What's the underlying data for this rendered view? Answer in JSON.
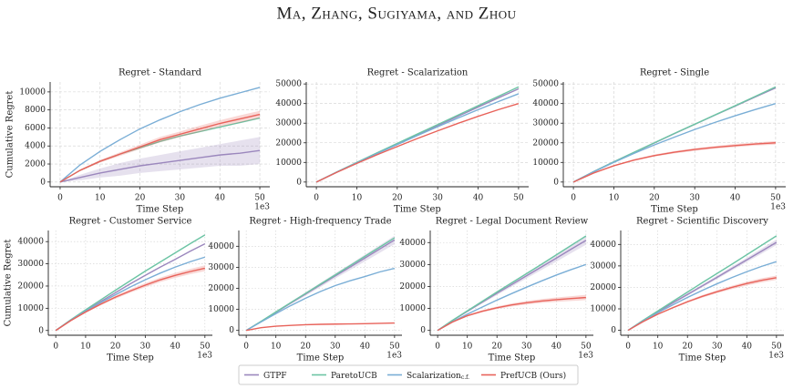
{
  "header": {
    "title": "Ma, Zhang, Sugiyama, and Zhou"
  },
  "chart_data": [
    {
      "type": "line",
      "title": "Regret - Standard",
      "xlabel": "Time Step",
      "ylabel": "Cumulative Regret",
      "x_offset_label": "1e3",
      "grid": "dashed",
      "x": [
        0,
        5,
        10,
        15,
        20,
        25,
        30,
        35,
        40,
        45,
        50
      ],
      "xlim": [
        -2.5,
        52.5
      ],
      "xticks": [
        0,
        10,
        20,
        30,
        40,
        50
      ],
      "ylim": [
        -525,
        11100
      ],
      "yticks": [
        0,
        2000,
        4000,
        6000,
        8000,
        10000
      ],
      "series": [
        {
          "name": "GTPF",
          "color": "#9b87bd",
          "values": [
            0,
            500,
            1000,
            1400,
            1800,
            2100,
            2400,
            2700,
            3000,
            3200,
            3500
          ],
          "error": [
            0,
            300,
            500,
            700,
            800,
            900,
            1000,
            1100,
            1200,
            1400,
            1500
          ]
        },
        {
          "name": "ParetoUCB",
          "color": "#6cc4a4",
          "values": [
            0,
            1300,
            2300,
            3100,
            3800,
            4500,
            5100,
            5600,
            6100,
            6600,
            7100
          ]
        },
        {
          "name": "Scalarization",
          "subscript": "c.f.",
          "color": "#7aaed6",
          "values": [
            0,
            1900,
            3400,
            4700,
            5900,
            6900,
            7800,
            8600,
            9300,
            9900,
            10500
          ]
        },
        {
          "name": "PrefUCB (Ours)",
          "color": "#e8625a",
          "values": [
            0,
            1300,
            2300,
            3100,
            3900,
            4700,
            5300,
            5900,
            6500,
            7000,
            7500
          ],
          "error": [
            0,
            100,
            150,
            200,
            250,
            300,
            300,
            350,
            350,
            400,
            400
          ]
        }
      ]
    },
    {
      "type": "line",
      "title": "Regret - Scalarization",
      "xlabel": "Time Step",
      "grid": "dashed",
      "x": [
        0,
        5,
        10,
        15,
        20,
        25,
        30,
        35,
        40,
        45,
        50
      ],
      "xlim": [
        -2.5,
        52.5
      ],
      "xticks": [
        0,
        10,
        20,
        30,
        40,
        50
      ],
      "ylim": [
        -2400,
        51000
      ],
      "yticks": [
        0,
        10000,
        20000,
        30000,
        40000,
        50000
      ],
      "series": [
        {
          "name": "GTPF",
          "color": "#9b87bd",
          "values": [
            0,
            5000,
            9900,
            14700,
            19400,
            24100,
            28800,
            33500,
            38200,
            42900,
            47500
          ]
        },
        {
          "name": "ParetoUCB",
          "color": "#6cc4a4",
          "values": [
            0,
            5100,
            10000,
            14900,
            19700,
            24500,
            29300,
            34100,
            38900,
            43700,
            48500
          ]
        },
        {
          "name": "Scalarization",
          "color": "#7aaed6",
          "values": [
            0,
            5000,
            9800,
            14500,
            19100,
            23700,
            28200,
            32600,
            36900,
            41000,
            45000
          ]
        },
        {
          "name": "PrefUCB (Ours)",
          "color": "#e8625a",
          "values": [
            0,
            4900,
            9500,
            13900,
            18100,
            22200,
            26100,
            29900,
            33500,
            36900,
            40000
          ]
        }
      ]
    },
    {
      "type": "line",
      "title": "Regret - Single",
      "xlabel": "Time Step",
      "x_offset_label": "1e3",
      "grid": "dashed",
      "x": [
        0,
        5,
        10,
        15,
        20,
        25,
        30,
        35,
        40,
        45,
        50
      ],
      "xlim": [
        -2.5,
        52.5
      ],
      "xticks": [
        0,
        10,
        20,
        30,
        40,
        50
      ],
      "ylim": [
        -2400,
        51000
      ],
      "yticks": [
        0,
        10000,
        20000,
        30000,
        40000,
        50000
      ],
      "series": [
        {
          "name": "GTPF",
          "color": "#9b87bd",
          "values": [
            0,
            5300,
            10300,
            15100,
            19900,
            24700,
            29400,
            34100,
            38700,
            43400,
            48000
          ]
        },
        {
          "name": "ParetoUCB",
          "color": "#6cc4a4",
          "values": [
            0,
            5300,
            10300,
            15200,
            20000,
            24800,
            29500,
            34200,
            38900,
            43700,
            48500
          ]
        },
        {
          "name": "Scalarization",
          "color": "#7aaed6",
          "values": [
            0,
            5200,
            10000,
            14600,
            18900,
            22900,
            26800,
            30400,
            33800,
            37000,
            40000
          ]
        },
        {
          "name": "PrefUCB (Ours)",
          "color": "#e8625a",
          "values": [
            0,
            4600,
            8300,
            11200,
            13500,
            15200,
            16600,
            17700,
            18600,
            19400,
            20000
          ],
          "error": [
            0,
            200,
            300,
            400,
            500,
            600,
            700,
            700,
            800,
            800,
            900
          ]
        }
      ]
    },
    {
      "type": "line",
      "title": "Regret - Customer Service",
      "xlabel": "Time Step",
      "ylabel": "Cumulative Regret",
      "x_offset_label": "1e3",
      "grid": "dotted",
      "x": [
        0,
        5,
        10,
        15,
        20,
        25,
        30,
        35,
        40,
        45,
        50
      ],
      "xlim": [
        -2.5,
        52.5
      ],
      "xticks": [
        0,
        10,
        20,
        30,
        40,
        50
      ],
      "ylim": [
        -2150,
        45000
      ],
      "yticks": [
        0,
        10000,
        20000,
        30000,
        40000
      ],
      "series": [
        {
          "name": "GTPF",
          "color": "#9b87bd",
          "values": [
            0,
            4600,
            8900,
            13000,
            17000,
            21000,
            24800,
            28500,
            32000,
            35600,
            39000
          ]
        },
        {
          "name": "ParetoUCB",
          "color": "#6cc4a4",
          "values": [
            0,
            4800,
            9300,
            13700,
            18100,
            22400,
            26700,
            30800,
            34900,
            39000,
            43000
          ]
        },
        {
          "name": "Scalarization",
          "color": "#7aaed6",
          "values": [
            0,
            4600,
            8700,
            12500,
            16100,
            19600,
            22800,
            25800,
            28500,
            30900,
            33000
          ]
        },
        {
          "name": "PrefUCB (Ours)",
          "color": "#e8625a",
          "values": [
            0,
            4400,
            8300,
            11800,
            15000,
            17800,
            20400,
            22800,
            24800,
            26500,
            28000
          ],
          "error": [
            0,
            200,
            400,
            500,
            700,
            800,
            900,
            1000,
            1100,
            1200,
            1300
          ]
        }
      ]
    },
    {
      "type": "line",
      "title": "Regret - High-frequency Trade",
      "xlabel": "Time Step",
      "x_offset_label": "1e3",
      "grid": "dotted",
      "x": [
        0,
        5,
        10,
        15,
        20,
        25,
        30,
        35,
        40,
        45,
        50
      ],
      "xlim": [
        -2.5,
        52.5
      ],
      "xticks": [
        0,
        10,
        20,
        30,
        40,
        50
      ],
      "ylim": [
        -2300,
        47500
      ],
      "yticks": [
        0,
        10000,
        20000,
        30000,
        40000
      ],
      "series": [
        {
          "name": "GTPF",
          "color": "#9b87bd",
          "values": [
            0,
            4200,
            8600,
            13000,
            17300,
            21600,
            25900,
            30100,
            34400,
            38700,
            43000
          ],
          "error": [
            0,
            200,
            400,
            600,
            800,
            1000,
            1200,
            1400,
            1600,
            1800,
            2000
          ]
        },
        {
          "name": "ParetoUCB",
          "color": "#6cc4a4",
          "values": [
            0,
            4300,
            8800,
            13200,
            17600,
            22000,
            26400,
            30800,
            35200,
            39600,
            44000
          ]
        },
        {
          "name": "Scalarization",
          "color": "#7aaed6",
          "values": [
            0,
            4000,
            8000,
            11800,
            15300,
            18500,
            21300,
            23600,
            25600,
            27800,
            29500
          ]
        },
        {
          "name": "PrefUCB (Ours)",
          "color": "#e8625a",
          "values": [
            0,
            1300,
            2000,
            2400,
            2700,
            2900,
            3000,
            3100,
            3200,
            3350,
            3500
          ]
        }
      ]
    },
    {
      "type": "line",
      "title": "Regret - Legal Document Review",
      "xlabel": "Time Step",
      "x_offset_label": "1e3",
      "grid": "dotted",
      "x": [
        0,
        5,
        10,
        15,
        20,
        25,
        30,
        35,
        40,
        45,
        50
      ],
      "xlim": [
        -2.5,
        52.5
      ],
      "xticks": [
        0,
        10,
        20,
        30,
        40,
        50
      ],
      "ylim": [
        -2200,
        45500
      ],
      "yticks": [
        0,
        10000,
        20000,
        30000,
        40000
      ],
      "series": [
        {
          "name": "GTPF",
          "color": "#9b87bd",
          "values": [
            0,
            4500,
            8700,
            12800,
            16900,
            20900,
            24900,
            28900,
            32900,
            37000,
            41000
          ],
          "error": [
            0,
            200,
            400,
            600,
            800,
            1000,
            1200,
            1400,
            1600,
            1800,
            2000
          ]
        },
        {
          "name": "ParetoUCB",
          "color": "#6cc4a4",
          "values": [
            0,
            4600,
            8900,
            13200,
            17500,
            21700,
            25900,
            30100,
            34400,
            38700,
            43000
          ]
        },
        {
          "name": "Scalarization",
          "color": "#7aaed6",
          "values": [
            0,
            3900,
            7400,
            10600,
            13800,
            16800,
            19700,
            22500,
            25200,
            27700,
            30000
          ]
        },
        {
          "name": "PrefUCB (Ours)",
          "color": "#e8625a",
          "values": [
            0,
            3800,
            6700,
            8700,
            10300,
            11600,
            12600,
            13400,
            14000,
            14500,
            15000
          ],
          "error": [
            0,
            200,
            400,
            500,
            600,
            700,
            800,
            900,
            1000,
            1100,
            1200
          ]
        }
      ]
    },
    {
      "type": "line",
      "title": "Regret - Scientific Discovery",
      "xlabel": "Time Step",
      "x_offset_label": "1e3",
      "grid": "dotted",
      "x": [
        0,
        5,
        10,
        15,
        20,
        25,
        30,
        35,
        40,
        45,
        50
      ],
      "xlim": [
        -2.5,
        52.5
      ],
      "xticks": [
        0,
        10,
        20,
        30,
        40,
        50
      ],
      "ylim": [
        -2300,
        46500
      ],
      "yticks": [
        0,
        10000,
        20000,
        30000,
        40000
      ],
      "series": [
        {
          "name": "GTPF",
          "color": "#9b87bd",
          "values": [
            0,
            4500,
            8600,
            12700,
            16700,
            20700,
            24700,
            28800,
            32800,
            36900,
            41000
          ],
          "error": [
            0,
            200,
            300,
            400,
            600,
            700,
            800,
            900,
            1000,
            1200,
            1300
          ]
        },
        {
          "name": "ParetoUCB",
          "color": "#6cc4a4",
          "values": [
            0,
            4600,
            9000,
            13400,
            17800,
            22200,
            26500,
            30800,
            35200,
            39600,
            44000
          ]
        },
        {
          "name": "Scalarization",
          "color": "#7aaed6",
          "values": [
            0,
            4300,
            8200,
            11800,
            15300,
            18600,
            21700,
            24600,
            27300,
            29800,
            32000
          ]
        },
        {
          "name": "PrefUCB (Ours)",
          "color": "#e8625a",
          "values": [
            0,
            4000,
            7500,
            10500,
            13300,
            15800,
            18000,
            20000,
            21800,
            23300,
            24500
          ],
          "error": [
            0,
            200,
            300,
            400,
            500,
            600,
            700,
            800,
            900,
            1000,
            1000
          ]
        }
      ]
    }
  ]
}
